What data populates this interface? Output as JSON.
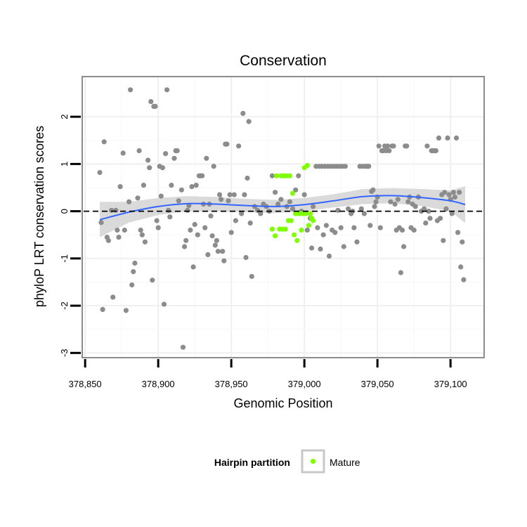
{
  "chart_data": {
    "type": "scatter",
    "title": "Conservation",
    "xlabel": "Genomic Position",
    "ylabel": "phyloP LRT conservation scores",
    "xlim": [
      378848,
      379123
    ],
    "ylim": [
      -3.1,
      2.85
    ],
    "x_ticks": [
      378850,
      378900,
      378950,
      379000,
      379050,
      379100
    ],
    "x_tick_labels": [
      "378,850",
      "378,900",
      "378,950",
      "379,000",
      "379,050",
      "379,100"
    ],
    "y_ticks": [
      -3,
      -2,
      -1,
      0,
      1,
      2
    ],
    "y_tick_labels": [
      "-3",
      "-2",
      "-1",
      "0",
      "1",
      "2"
    ],
    "grid": true,
    "reference_line": {
      "y": 0,
      "style": "dashed"
    },
    "legend": {
      "title": "Hairpin partition",
      "placement": "bottom",
      "entries": [
        {
          "label": "Mature",
          "color": "#7FFF00"
        }
      ]
    },
    "colors": {
      "background_points": "#8c8c8c",
      "mature_points": "#7FFF00",
      "smooth_line": "#3366FF",
      "confidence_band": "#d3d3d3"
    },
    "series": [
      {
        "values": [
          [
            378860,
            0.82
          ],
          [
            378861,
            -0.24
          ],
          [
            378862,
            -2.08
          ],
          [
            378863,
            1.47
          ],
          [
            378865,
            -0.55
          ],
          [
            378866,
            -0.62
          ],
          [
            378868,
            0.02
          ],
          [
            378869,
            -1.82
          ],
          [
            378871,
            0.02
          ],
          [
            378872,
            -0.4
          ],
          [
            378873,
            -0.55
          ],
          [
            378874,
            0.52
          ],
          [
            378876,
            1.23
          ],
          [
            378877,
            -0.4
          ],
          [
            378878,
            -2.1
          ],
          [
            378880,
            0.2
          ],
          [
            378881,
            2.57
          ],
          [
            378882,
            -1.56
          ],
          [
            378883,
            -1.28
          ],
          [
            378884,
            -1.1
          ],
          [
            378886,
            0.28
          ],
          [
            378887,
            1.28
          ],
          [
            378888,
            -0.4
          ],
          [
            378889,
            -0.5
          ],
          [
            378890,
            0.55
          ],
          [
            378891,
            -0.65
          ],
          [
            378893,
            1.08
          ],
          [
            378894,
            0.92
          ],
          [
            378895,
            2.32
          ],
          [
            378896,
            -1.46
          ],
          [
            378897,
            2.22
          ],
          [
            378898,
            2.22
          ],
          [
            378899,
            -0.2
          ],
          [
            378900,
            -0.35
          ],
          [
            378901,
            0.95
          ],
          [
            378902,
            0.32
          ],
          [
            378903,
            0.92
          ],
          [
            378904,
            -1.97
          ],
          [
            378905,
            1.22
          ],
          [
            378906,
            2.57
          ],
          [
            378907,
            0.02
          ],
          [
            378908,
            -0.12
          ],
          [
            378909,
            0.55
          ],
          [
            378911,
            1.12
          ],
          [
            378912,
            1.28
          ],
          [
            378913,
            1.28
          ],
          [
            378914,
            0.22
          ],
          [
            378916,
            0.45
          ],
          [
            378917,
            -2.88
          ],
          [
            378918,
            -0.75
          ],
          [
            378919,
            -0.62
          ],
          [
            378920,
            0.02
          ],
          [
            378921,
            0.12
          ],
          [
            378922,
            -0.4
          ],
          [
            378923,
            0.52
          ],
          [
            378924,
            -1.18
          ],
          [
            378925,
            -0.28
          ],
          [
            378926,
            0.55
          ],
          [
            378927,
            -0.5
          ],
          [
            378928,
            0.75
          ],
          [
            378929,
            0.75
          ],
          [
            378930,
            0.75
          ],
          [
            378931,
            0.15
          ],
          [
            378932,
            -0.35
          ],
          [
            378933,
            1.12
          ],
          [
            378934,
            -0.92
          ],
          [
            378935,
            0.15
          ],
          [
            378936,
            -0.1
          ],
          [
            378937,
            -0.52
          ],
          [
            378938,
            0.95
          ],
          [
            378939,
            -0.72
          ],
          [
            378940,
            -0.62
          ],
          [
            378941,
            -0.85
          ],
          [
            378942,
            0.35
          ],
          [
            378943,
            0.25
          ],
          [
            378944,
            -0.85
          ],
          [
            378945,
            -1.05
          ],
          [
            378946,
            1.42
          ],
          [
            378947,
            1.42
          ],
          [
            378948,
            0.22
          ],
          [
            378949,
            0.35
          ],
          [
            378950,
            -0.45
          ],
          [
            378952,
            0.35
          ],
          [
            378953,
            -0.2
          ],
          [
            378955,
            1.38
          ],
          [
            378957,
            -0.05
          ],
          [
            378958,
            2.07
          ],
          [
            378959,
            0.35
          ],
          [
            378960,
            -0.98
          ],
          [
            378961,
            0.7
          ],
          [
            378962,
            1.9
          ],
          [
            378963,
            -0.25
          ],
          [
            378964,
            -1.38
          ],
          [
            378966,
            0.1
          ],
          [
            378968,
            0.02
          ],
          [
            378970,
            -0.05
          ],
          [
            378972,
            0.15
          ],
          [
            378974,
            0.1
          ],
          [
            378976,
            0.0
          ],
          [
            378978,
            0.75
          ],
          [
            378980,
            0.4
          ],
          [
            378982,
            0.15
          ],
          [
            378984,
            0.25
          ],
          [
            378986,
            0.75
          ],
          [
            378988,
            0.1
          ],
          [
            378990,
            0.2
          ],
          [
            378992,
            0.05
          ],
          [
            378994,
            0.45
          ],
          [
            378996,
            0.75
          ],
          [
            378998,
            0.0
          ],
          [
            379000,
            0.35
          ],
          [
            379002,
            -0.4
          ],
          [
            379004,
            -0.15
          ],
          [
            379005,
            -0.78
          ],
          [
            379006,
            0.1
          ],
          [
            379008,
            0.95
          ],
          [
            379009,
            -0.35
          ],
          [
            379010,
            0.95
          ],
          [
            379011,
            -0.8
          ],
          [
            379012,
            0.95
          ],
          [
            379013,
            -0.5
          ],
          [
            379014,
            0.95
          ],
          [
            379015,
            -0.3
          ],
          [
            379016,
            0.95
          ],
          [
            379017,
            -0.95
          ],
          [
            379018,
            0.95
          ],
          [
            379019,
            -0.4
          ],
          [
            379020,
            0.95
          ],
          [
            379021,
            -0.45
          ],
          [
            379022,
            0.95
          ],
          [
            379023,
            0.02
          ],
          [
            379024,
            0.95
          ],
          [
            379025,
            -0.35
          ],
          [
            379026,
            0.95
          ],
          [
            379027,
            -0.75
          ],
          [
            379028,
            0.95
          ],
          [
            379030,
            0.05
          ],
          [
            379032,
            -0.05
          ],
          [
            379033,
            0.0
          ],
          [
            379034,
            -0.35
          ],
          [
            379036,
            -0.65
          ],
          [
            379038,
            0.95
          ],
          [
            379039,
            0.05
          ],
          [
            379040,
            0.95
          ],
          [
            379041,
            -0.05
          ],
          [
            379042,
            0.95
          ],
          [
            379043,
            0.95
          ],
          [
            379044,
            0.95
          ],
          [
            379045,
            -0.3
          ],
          [
            379046,
            0.42
          ],
          [
            379047,
            0.45
          ],
          [
            379048,
            0.1
          ],
          [
            379049,
            0.2
          ],
          [
            379050,
            0.3
          ],
          [
            379051,
            1.38
          ],
          [
            379052,
            -0.35
          ],
          [
            379053,
            1.28
          ],
          [
            379054,
            1.28
          ],
          [
            379055,
            1.38
          ],
          [
            379056,
            1.28
          ],
          [
            379057,
            1.38
          ],
          [
            379058,
            1.28
          ],
          [
            379059,
            0.2
          ],
          [
            379060,
            1.38
          ],
          [
            379061,
            1.38
          ],
          [
            379062,
            0.15
          ],
          [
            379063,
            -0.4
          ],
          [
            379064,
            0.25
          ],
          [
            379065,
            -0.35
          ],
          [
            379066,
            -1.3
          ],
          [
            379067,
            -0.4
          ],
          [
            379068,
            -0.75
          ],
          [
            379069,
            1.38
          ],
          [
            379070,
            1.38
          ],
          [
            379071,
            0.2
          ],
          [
            379072,
            0.3
          ],
          [
            379073,
            -0.35
          ],
          [
            379074,
            0.15
          ],
          [
            379075,
            -0.4
          ],
          [
            379076,
            0.1
          ],
          [
            379078,
            0.3
          ],
          [
            379080,
            0.0
          ],
          [
            379082,
            0.05
          ],
          [
            379083,
            -0.25
          ],
          [
            379084,
            1.38
          ],
          [
            379085,
            0.0
          ],
          [
            379086,
            -0.15
          ],
          [
            379087,
            1.28
          ],
          [
            379088,
            1.28
          ],
          [
            379089,
            1.28
          ],
          [
            379090,
            1.28
          ],
          [
            379091,
            -0.2
          ],
          [
            379092,
            1.55
          ],
          [
            379093,
            -0.15
          ],
          [
            379094,
            0.35
          ],
          [
            379095,
            -0.62
          ],
          [
            379096,
            0.4
          ],
          [
            379097,
            0.05
          ],
          [
            379098,
            1.55
          ],
          [
            379099,
            0.35
          ],
          [
            379100,
            0.25
          ],
          [
            379101,
            -0.05
          ],
          [
            379102,
            0.4
          ],
          [
            379103,
            0.3
          ],
          [
            379104,
            1.55
          ],
          [
            379105,
            -0.45
          ],
          [
            379106,
            0.4
          ],
          [
            379107,
            -1.18
          ],
          [
            379108,
            -0.65
          ],
          [
            379109,
            -1.45
          ]
        ]
      },
      {
        "name": "Mature",
        "values": [
          [
            378978,
            -0.38
          ],
          [
            378980,
            -0.52
          ],
          [
            378981,
            0.75
          ],
          [
            378983,
            -0.38
          ],
          [
            378984,
            0.75
          ],
          [
            378985,
            -0.38
          ],
          [
            378986,
            0.75
          ],
          [
            378987,
            -0.38
          ],
          [
            378988,
            0.75
          ],
          [
            378989,
            -0.2
          ],
          [
            378990,
            0.75
          ],
          [
            378991,
            -0.2
          ],
          [
            378992,
            0.38
          ],
          [
            378993,
            -0.5
          ],
          [
            378994,
            -0.05
          ],
          [
            378995,
            -0.62
          ],
          [
            378996,
            -0.05
          ],
          [
            378997,
            -0.05
          ],
          [
            378998,
            -0.4
          ],
          [
            378999,
            -0.05
          ],
          [
            379000,
            0.92
          ],
          [
            379001,
            -0.05
          ],
          [
            379002,
            0.97
          ],
          [
            379003,
            -0.3
          ],
          [
            379004,
            -0.05
          ],
          [
            379005,
            -0.15
          ],
          [
            379006,
            -0.2
          ]
        ]
      }
    ],
    "smooth": {
      "x": [
        378860,
        378880,
        378900,
        378920,
        378940,
        378960,
        378980,
        379000,
        379020,
        379040,
        379060,
        379080,
        379100,
        379110
      ],
      "y": [
        -0.18,
        -0.02,
        0.1,
        0.16,
        0.15,
        0.12,
        0.1,
        0.14,
        0.22,
        0.31,
        0.33,
        0.29,
        0.22,
        0.14
      ],
      "lower": [
        -0.55,
        -0.24,
        -0.08,
        0.0,
        0.0,
        -0.02,
        -0.04,
        0.0,
        0.08,
        0.15,
        0.17,
        0.11,
        0.0,
        -0.25
      ],
      "upper": [
        0.2,
        0.2,
        0.28,
        0.32,
        0.3,
        0.26,
        0.24,
        0.28,
        0.36,
        0.47,
        0.49,
        0.47,
        0.44,
        0.53
      ]
    }
  }
}
